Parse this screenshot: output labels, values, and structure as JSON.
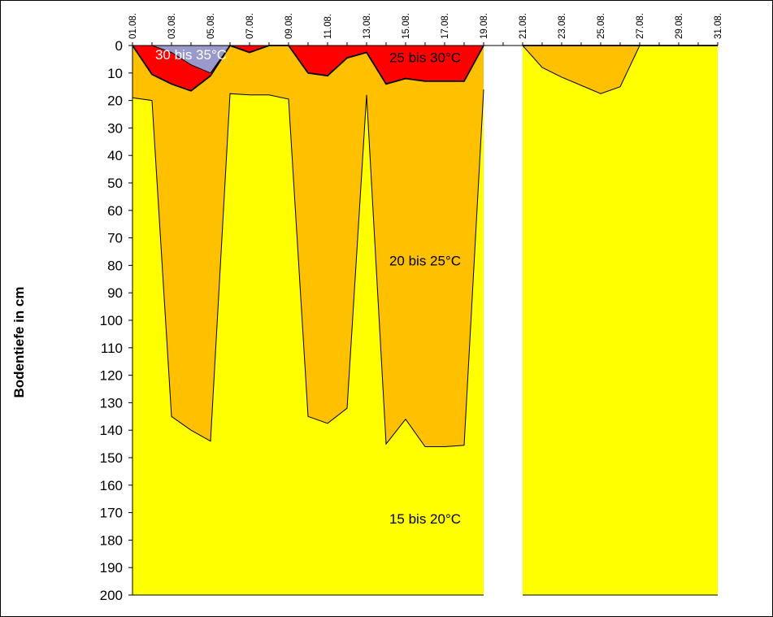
{
  "chart_data": {
    "type": "area",
    "ylabel": "Bodentiefe in cm",
    "xlabel": "",
    "y_inverted": true,
    "ylim": [
      0,
      200
    ],
    "yticks": [
      0,
      10,
      20,
      30,
      40,
      50,
      60,
      70,
      80,
      90,
      100,
      110,
      120,
      130,
      140,
      150,
      160,
      170,
      180,
      190,
      200
    ],
    "x_tick_labels": [
      "01.08.",
      "03.08.",
      "05.08.",
      "07.08.",
      "09.08.",
      "11.08.",
      "13.08.",
      "15.08.",
      "17.08.",
      "19.08.",
      "21.08.",
      "23.08.",
      "25.08.",
      "27.08.",
      "29.08.",
      "31.08."
    ],
    "x_days": [
      1,
      2,
      3,
      4,
      5,
      6,
      7,
      8,
      9,
      10,
      11,
      12,
      13,
      14,
      15,
      16,
      17,
      18,
      19,
      20,
      21,
      22,
      23,
      24,
      25,
      26,
      27,
      28,
      29,
      30,
      31
    ],
    "series": [
      {
        "name": "30 bis 35°C",
        "color": "#9999cc",
        "bottom_depth": [
          0,
          0,
          2.5,
          7,
          10,
          0,
          0,
          0,
          0,
          0,
          0,
          0,
          0,
          0,
          0,
          0,
          0,
          0,
          0,
          0,
          0,
          0,
          0,
          0,
          0,
          0,
          0,
          0,
          0,
          0,
          0
        ]
      },
      {
        "name": "25 bis 30°C",
        "color": "#ff0000",
        "bottom_depth": [
          0,
          10.5,
          14,
          16.5,
          11,
          0,
          2.5,
          0,
          0,
          10,
          11,
          4.5,
          2.5,
          14,
          12,
          13,
          13,
          13,
          0,
          null,
          0,
          0,
          0,
          0,
          0,
          0,
          0,
          0,
          0,
          0,
          0
        ]
      },
      {
        "name": "20 bis 25°C",
        "color": "#ffc000",
        "bottom_depth": [
          19,
          20,
          135,
          140,
          144,
          17.5,
          18,
          18,
          19.5,
          135,
          137.5,
          132,
          18,
          145,
          136,
          146,
          146,
          145.5,
          16,
          null,
          0,
          8,
          11.5,
          14.5,
          17.5,
          15,
          0,
          0,
          0,
          0,
          0
        ]
      },
      {
        "name": "15 bis 20°C",
        "color": "#ffff00",
        "bottom_depth": [
          200,
          200,
          200,
          200,
          200,
          200,
          200,
          200,
          200,
          200,
          200,
          200,
          200,
          200,
          200,
          200,
          200,
          200,
          200,
          null,
          200,
          200,
          200,
          200,
          200,
          200,
          200,
          200,
          200,
          200,
          200
        ]
      }
    ],
    "band_labels": [
      {
        "text": "30 bis 35°C",
        "day": 4.0,
        "depth": 5,
        "color": "#ffffff"
      },
      {
        "text": "25 bis 30°C",
        "day": 16.0,
        "depth": 6,
        "color": "#000000"
      },
      {
        "text": "20 bis 25°C",
        "day": 16.0,
        "depth": 80,
        "color": "#000000"
      },
      {
        "text": "15 bis 20°C",
        "day": 16.0,
        "depth": 174,
        "color": "#000000"
      }
    ]
  }
}
